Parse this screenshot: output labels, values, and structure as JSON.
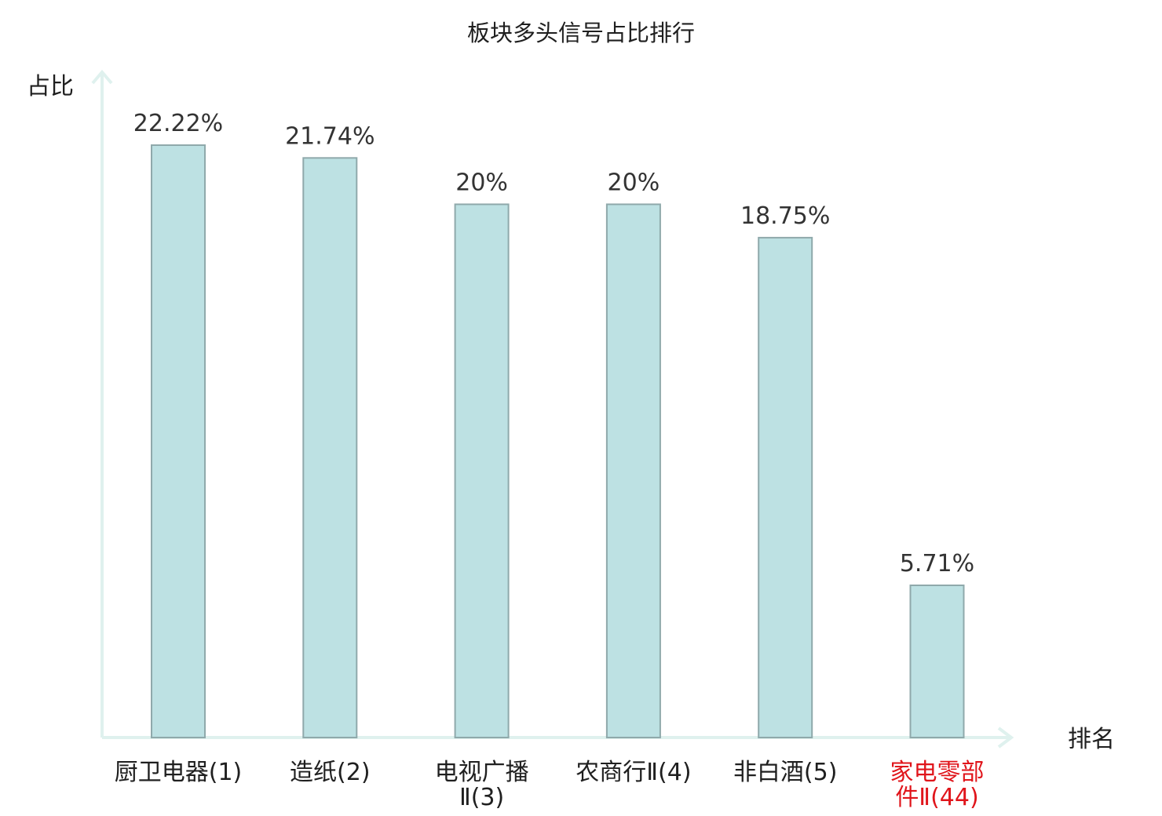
{
  "chart_data": {
    "type": "bar",
    "title": "板块多头信号占比排行",
    "ylabel": "占比",
    "xlabel": "排名",
    "categories": [
      [
        "厨卫电器(1)"
      ],
      [
        "造纸(2)"
      ],
      [
        "电视广播",
        "Ⅱ(3)"
      ],
      [
        "农商行Ⅱ(4)"
      ],
      [
        "非白酒(5)"
      ],
      [
        "家电零部",
        "件Ⅱ(44)"
      ]
    ],
    "values": [
      22.22,
      21.74,
      20,
      20,
      18.75,
      5.71
    ],
    "value_labels": [
      "22.22%",
      "21.74%",
      "20%",
      "20%",
      "18.75%",
      "5.71%"
    ],
    "highlight_index": 5,
    "ylim": [
      0,
      25
    ],
    "grid": false,
    "legend": false,
    "colors": {
      "bar_fill": "#bde1e3",
      "bar_stroke": "#8fa9ab",
      "axis": "#dff1ee",
      "highlight_text": "#e0151b"
    }
  }
}
